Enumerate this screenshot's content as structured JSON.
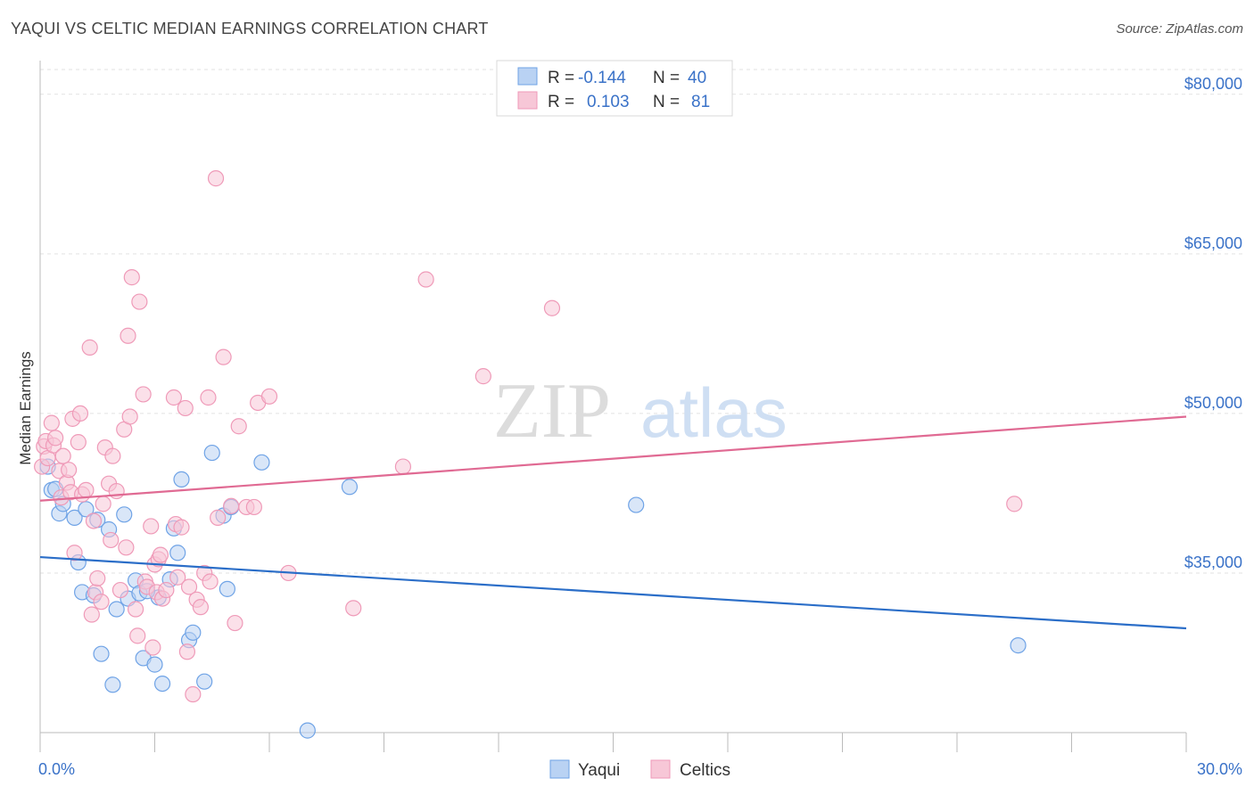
{
  "title": "YAQUI VS CELTIC MEDIAN EARNINGS CORRELATION CHART",
  "source": "Source: ZipAtlas.com",
  "watermark": {
    "zip": "ZIP",
    "atlas": "atlas"
  },
  "chart_data": {
    "type": "scatter",
    "ylabel": "Median Earnings",
    "xlim": [
      0,
      30
    ],
    "ylim": [
      20000,
      83000
    ],
    "x_edge_labels": [
      "0.0%",
      "30.0%"
    ],
    "yticks": [
      {
        "value": 35000,
        "label": "$35,000"
      },
      {
        "value": 50000,
        "label": "$50,000"
      },
      {
        "value": 65000,
        "label": "$65,000"
      },
      {
        "value": 80000,
        "label": "$80,000"
      }
    ],
    "grid": true,
    "legend_position": "top-center",
    "stats": [
      {
        "r_label": "R =",
        "r": "-0.144",
        "n_label": "N =",
        "n": "40"
      },
      {
        "r_label": "R =",
        "r": "0.103",
        "n_label": "N =",
        "n": "81"
      }
    ],
    "series": [
      {
        "name": "Yaqui",
        "color": "#6fa3e6",
        "fill": "#b9d2f3",
        "line_color": "#2b6ec8",
        "trend": {
          "x0": 0,
          "y0": 36500,
          "x1": 30,
          "y1": 29800
        },
        "points": [
          [
            0.2,
            45000
          ],
          [
            0.3,
            42800
          ],
          [
            0.4,
            42900
          ],
          [
            0.5,
            40600
          ],
          [
            0.6,
            41500
          ],
          [
            0.9,
            40200
          ],
          [
            1.0,
            36000
          ],
          [
            1.1,
            33200
          ],
          [
            1.2,
            41000
          ],
          [
            1.4,
            32900
          ],
          [
            1.5,
            40000
          ],
          [
            1.6,
            27400
          ],
          [
            1.8,
            39100
          ],
          [
            1.9,
            24500
          ],
          [
            2.0,
            31600
          ],
          [
            2.2,
            40500
          ],
          [
            2.3,
            32600
          ],
          [
            2.5,
            34300
          ],
          [
            2.6,
            33100
          ],
          [
            2.7,
            27000
          ],
          [
            3.0,
            26400
          ],
          [
            3.1,
            32700
          ],
          [
            3.2,
            24600
          ],
          [
            3.4,
            34400
          ],
          [
            3.5,
            39200
          ],
          [
            3.6,
            36900
          ],
          [
            3.7,
            43800
          ],
          [
            3.9,
            28700
          ],
          [
            4.0,
            29400
          ],
          [
            4.3,
            24800
          ],
          [
            4.5,
            46300
          ],
          [
            4.9,
            33500
          ],
          [
            4.8,
            40400
          ],
          [
            5.0,
            41200
          ],
          [
            5.8,
            45400
          ],
          [
            7.0,
            20200
          ],
          [
            8.1,
            43100
          ],
          [
            15.6,
            41400
          ],
          [
            25.6,
            28200
          ],
          [
            2.8,
            33300
          ]
        ]
      },
      {
        "name": "Celtics",
        "color": "#ef9ab8",
        "fill": "#f7c7d7",
        "line_color": "#e06a93",
        "trend": {
          "x0": 0,
          "y0": 41800,
          "x1": 30,
          "y1": 49700
        },
        "points": [
          [
            0.05,
            45000
          ],
          [
            0.1,
            46900
          ],
          [
            0.15,
            47400
          ],
          [
            0.2,
            45800
          ],
          [
            0.3,
            49100
          ],
          [
            0.35,
            47000
          ],
          [
            0.4,
            47700
          ],
          [
            0.5,
            44600
          ],
          [
            0.55,
            42100
          ],
          [
            0.6,
            46000
          ],
          [
            0.7,
            43500
          ],
          [
            0.75,
            44700
          ],
          [
            0.8,
            42600
          ],
          [
            0.85,
            49500
          ],
          [
            0.9,
            36900
          ],
          [
            1.0,
            47300
          ],
          [
            1.05,
            50000
          ],
          [
            1.1,
            42400
          ],
          [
            1.2,
            42800
          ],
          [
            1.3,
            56200
          ],
          [
            1.35,
            31100
          ],
          [
            1.4,
            39900
          ],
          [
            1.45,
            33200
          ],
          [
            1.5,
            34500
          ],
          [
            1.6,
            32300
          ],
          [
            1.65,
            41500
          ],
          [
            1.7,
            46800
          ],
          [
            1.8,
            43400
          ],
          [
            1.85,
            38100
          ],
          [
            1.9,
            46000
          ],
          [
            2.0,
            42700
          ],
          [
            2.1,
            33400
          ],
          [
            2.2,
            48500
          ],
          [
            2.25,
            37400
          ],
          [
            2.3,
            57300
          ],
          [
            2.35,
            49700
          ],
          [
            2.4,
            62800
          ],
          [
            2.5,
            31600
          ],
          [
            2.55,
            29100
          ],
          [
            2.6,
            60500
          ],
          [
            2.7,
            51800
          ],
          [
            2.75,
            34200
          ],
          [
            2.8,
            33700
          ],
          [
            2.9,
            39400
          ],
          [
            2.95,
            28000
          ],
          [
            3.0,
            35800
          ],
          [
            3.05,
            33200
          ],
          [
            3.1,
            36300
          ],
          [
            3.15,
            36700
          ],
          [
            3.2,
            32600
          ],
          [
            3.3,
            33400
          ],
          [
            3.5,
            51500
          ],
          [
            3.55,
            39600
          ],
          [
            3.6,
            34600
          ],
          [
            3.7,
            39300
          ],
          [
            3.8,
            50500
          ],
          [
            3.85,
            27600
          ],
          [
            3.9,
            33700
          ],
          [
            4.0,
            23600
          ],
          [
            4.1,
            32500
          ],
          [
            4.2,
            31800
          ],
          [
            4.3,
            35000
          ],
          [
            4.4,
            51500
          ],
          [
            4.45,
            34200
          ],
          [
            4.6,
            72100
          ],
          [
            4.65,
            40200
          ],
          [
            4.8,
            55300
          ],
          [
            5.0,
            41300
          ],
          [
            5.1,
            30300
          ],
          [
            5.2,
            48800
          ],
          [
            5.4,
            41200
          ],
          [
            5.6,
            41200
          ],
          [
            5.7,
            51000
          ],
          [
            6.0,
            51600
          ],
          [
            6.5,
            35000
          ],
          [
            8.2,
            31700
          ],
          [
            9.5,
            45000
          ],
          [
            10.1,
            62600
          ],
          [
            11.6,
            53500
          ],
          [
            13.4,
            59900
          ],
          [
            25.5,
            41500
          ]
        ]
      }
    ]
  }
}
